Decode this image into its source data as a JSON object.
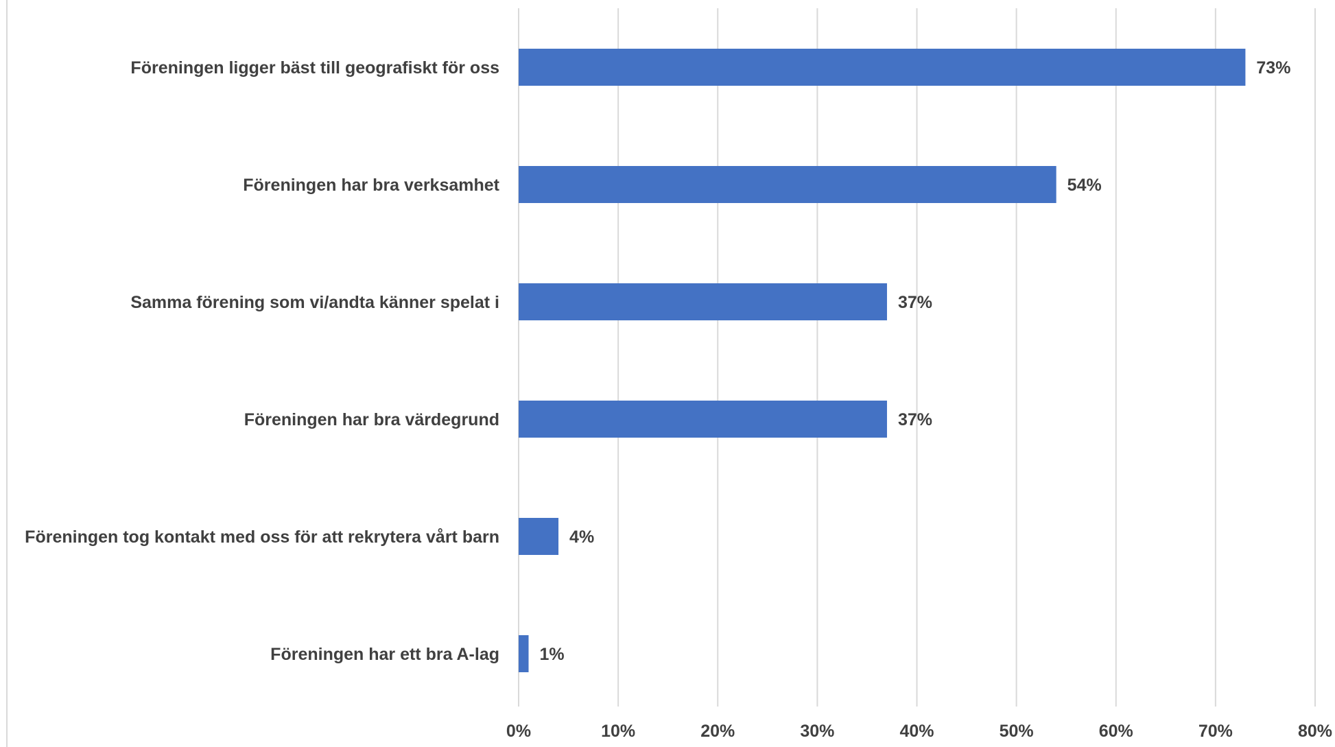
{
  "chart_data": {
    "type": "bar",
    "orientation": "horizontal",
    "categories": [
      "Föreningen ligger bäst till geografiskt för oss",
      "Föreningen har bra verksamhet",
      "Samma förening som vi/andta känner spelat i",
      "Föreningen har bra värdegrund",
      "Föreningen tog kontakt med oss för att rekrytera vårt barn",
      "Föreningen har ett bra A-lag"
    ],
    "values": [
      73,
      54,
      37,
      37,
      4,
      1
    ],
    "value_labels": [
      "73%",
      "54%",
      "37%",
      "37%",
      "4%",
      "1%"
    ],
    "xlim": [
      0,
      80
    ],
    "x_ticks": [
      0,
      10,
      20,
      30,
      40,
      50,
      60,
      70,
      80
    ],
    "x_tick_labels": [
      "0%",
      "10%",
      "20%",
      "30%",
      "40%",
      "50%",
      "60%",
      "70%",
      "80%"
    ],
    "grid": true,
    "legend": "none",
    "colors": {
      "bar": "#4472C4",
      "grid": "#d9d9d9",
      "text": "#404040"
    }
  }
}
